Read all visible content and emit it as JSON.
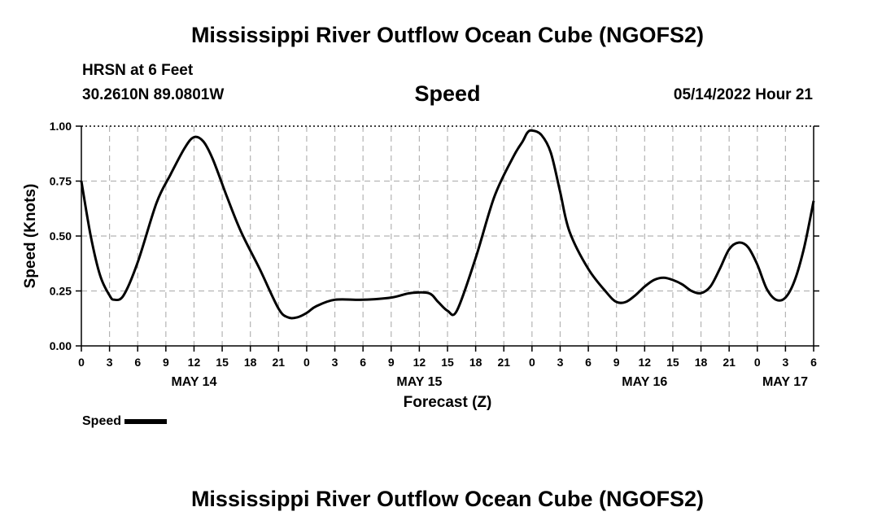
{
  "title_top": "Mississippi River Outflow Ocean Cube (NGOFS2)",
  "title_bottom": "Mississippi River Outflow Ocean Cube (NGOFS2)",
  "header": {
    "station": "HRSN at 6 Feet",
    "coords": "30.2610N  89.0801W",
    "variable": "Speed",
    "datetime": "05/14/2022 Hour 21"
  },
  "legend": {
    "label": "Speed"
  },
  "chart_data": {
    "type": "line",
    "title": "Speed",
    "xlabel": "Forecast (Z)",
    "ylabel": "Speed (Knots)",
    "xlim": [
      0,
      78
    ],
    "ylim": [
      0,
      1
    ],
    "yticks": [
      "0.00",
      "0.25",
      "0.50",
      "0.75",
      "1.00"
    ],
    "xtick_labels": [
      "0",
      "3",
      "6",
      "9",
      "12",
      "15",
      "18",
      "21",
      "0",
      "3",
      "6",
      "9",
      "12",
      "15",
      "18",
      "21",
      "0",
      "3",
      "6",
      "9",
      "12",
      "15",
      "18",
      "21",
      "0",
      "3",
      "6"
    ],
    "date_labels": [
      {
        "hour": 12,
        "label": "MAY 14"
      },
      {
        "hour": 36,
        "label": "MAY 15"
      },
      {
        "hour": 60,
        "label": "MAY 16"
      },
      {
        "hour": 78,
        "label": "MAY 17"
      }
    ],
    "grid": true,
    "series": [
      {
        "name": "Speed",
        "color": "#000000",
        "x": [
          0,
          1,
          2,
          3,
          3.5,
          4.5,
          6,
          8,
          9.5,
          11,
          12,
          13,
          14,
          15.5,
          17,
          19,
          21,
          22,
          23,
          24,
          25,
          27,
          30,
          33,
          35,
          37,
          38,
          39,
          40,
          42,
          44,
          46,
          47,
          47.5,
          48,
          49,
          50,
          51,
          52,
          54,
          56,
          57,
          58,
          59,
          60,
          61,
          62,
          63,
          64,
          65,
          66,
          67,
          68,
          69,
          70,
          71,
          72,
          73,
          74,
          75,
          76,
          77,
          78
        ],
        "y": [
          0.75,
          0.5,
          0.32,
          0.23,
          0.21,
          0.23,
          0.38,
          0.65,
          0.78,
          0.9,
          0.95,
          0.93,
          0.85,
          0.68,
          0.52,
          0.35,
          0.17,
          0.13,
          0.13,
          0.15,
          0.18,
          0.21,
          0.21,
          0.22,
          0.24,
          0.24,
          0.2,
          0.16,
          0.16,
          0.4,
          0.68,
          0.86,
          0.93,
          0.97,
          0.98,
          0.96,
          0.88,
          0.7,
          0.52,
          0.35,
          0.24,
          0.2,
          0.2,
          0.23,
          0.27,
          0.3,
          0.31,
          0.3,
          0.28,
          0.25,
          0.24,
          0.27,
          0.35,
          0.44,
          0.47,
          0.45,
          0.37,
          0.26,
          0.21,
          0.22,
          0.3,
          0.45,
          0.66
        ]
      }
    ]
  }
}
